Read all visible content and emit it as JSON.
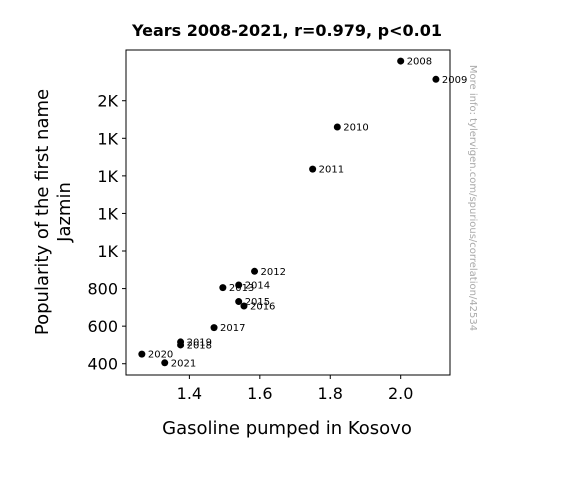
{
  "chart_data": {
    "type": "scatter",
    "title": "Years 2008-2021, r=0.979, p<0.01",
    "xlabel": "Gasoline pumped in Kosovo",
    "ylabel_lines": [
      "Popularity of the first name",
      "Jazmin"
    ],
    "watermark": "More info: tylervigen.com/spurious/correlation/42534",
    "xlim": [
      1.22,
      2.14
    ],
    "ylim": [
      340,
      2070
    ],
    "x_ticks": [
      {
        "value": 1.4,
        "label": "1.4"
      },
      {
        "value": 1.6,
        "label": "1.6"
      },
      {
        "value": 1.8,
        "label": "1.8"
      },
      {
        "value": 2.0,
        "label": "2.0"
      }
    ],
    "y_ticks": [
      {
        "value": 400,
        "label": "400"
      },
      {
        "value": 600,
        "label": "600"
      },
      {
        "value": 800,
        "label": "800"
      },
      {
        "value": 1000,
        "label": "1K"
      },
      {
        "value": 1200,
        "label": "1K"
      },
      {
        "value": 1400,
        "label": "1K"
      },
      {
        "value": 1600,
        "label": "1K"
      },
      {
        "value": 1800,
        "label": "2K"
      }
    ],
    "marker_color": "#000000",
    "points": [
      {
        "label": "2008",
        "x": 2.0,
        "y": 2011
      },
      {
        "label": "2009",
        "x": 2.1,
        "y": 1914
      },
      {
        "label": "2010",
        "x": 1.82,
        "y": 1660
      },
      {
        "label": "2011",
        "x": 1.75,
        "y": 1436
      },
      {
        "label": "2012",
        "x": 1.585,
        "y": 892
      },
      {
        "label": "2013",
        "x": 1.495,
        "y": 805
      },
      {
        "label": "2014",
        "x": 1.54,
        "y": 819
      },
      {
        "label": "2015",
        "x": 1.54,
        "y": 731
      },
      {
        "label": "2016",
        "x": 1.555,
        "y": 707
      },
      {
        "label": "2017",
        "x": 1.47,
        "y": 592
      },
      {
        "label": "2018",
        "x": 1.375,
        "y": 500
      },
      {
        "label": "2019",
        "x": 1.375,
        "y": 516
      },
      {
        "label": "2020",
        "x": 1.265,
        "y": 451
      },
      {
        "label": "2021",
        "x": 1.33,
        "y": 405
      }
    ]
  }
}
